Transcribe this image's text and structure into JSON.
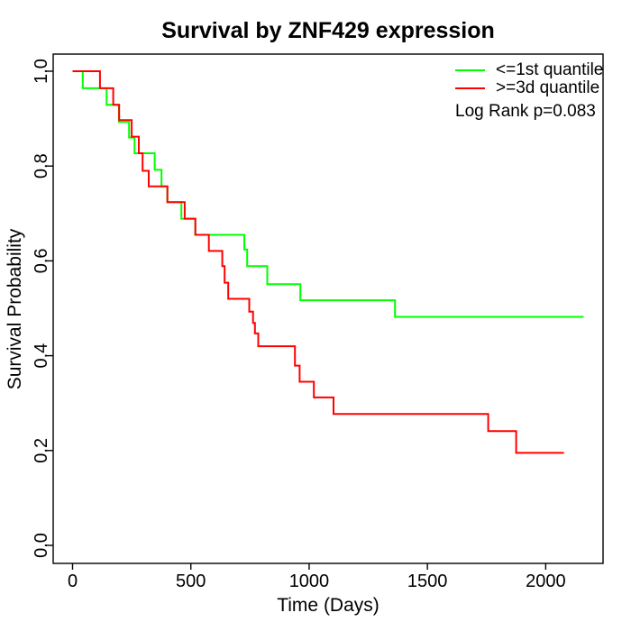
{
  "title": "Survival by ZNF429 expression",
  "axes": {
    "x": {
      "label": "Time (Days)",
      "ticks": [
        0,
        500,
        1000,
        1500,
        2000
      ]
    },
    "y": {
      "label": "Survival Probability",
      "ticks": [
        "0.0",
        "0.2",
        "0.4",
        "0.6",
        "0.8",
        "1.0"
      ]
    }
  },
  "legend": {
    "items": [
      {
        "label": "<=1st quantile",
        "color": "#00ff00"
      },
      {
        "label": ">=3d quantile",
        "color": "#ff0000"
      }
    ],
    "note": "Log Rank p=0.083"
  },
  "chart_data": {
    "type": "line",
    "subtype": "kaplan-meier-step",
    "title": "Survival by ZNF429 expression",
    "xlabel": "Time (Days)",
    "ylabel": "Survival Probability",
    "xlim": [
      0,
      2200
    ],
    "ylim": [
      0,
      1
    ],
    "x_ticks": [
      0,
      500,
      1000,
      1500,
      2000
    ],
    "y_ticks": [
      0.0,
      0.2,
      0.4,
      0.6,
      0.8,
      1.0
    ],
    "grid": false,
    "legend_position": "top-right",
    "annotation": "Log Rank p=0.083",
    "series": [
      {
        "name": "<=1st quantile",
        "color": "#00ff00",
        "points": [
          [
            0,
            1.0
          ],
          [
            43,
            0.964
          ],
          [
            144,
            0.929
          ],
          [
            196,
            0.893
          ],
          [
            239,
            0.86
          ],
          [
            262,
            0.827
          ],
          [
            347,
            0.792
          ],
          [
            376,
            0.757
          ],
          [
            401,
            0.724
          ],
          [
            460,
            0.689
          ],
          [
            519,
            0.655
          ],
          [
            726,
            0.624
          ],
          [
            738,
            0.589
          ],
          [
            823,
            0.551
          ],
          [
            963,
            0.517
          ],
          [
            1363,
            0.482
          ],
          [
            2160,
            0.482
          ]
        ]
      },
      {
        "name": ">=3d quantile",
        "color": "#ff0000",
        "points": [
          [
            0,
            1.0
          ],
          [
            116,
            0.964
          ],
          [
            172,
            0.929
          ],
          [
            197,
            0.897
          ],
          [
            250,
            0.862
          ],
          [
            280,
            0.827
          ],
          [
            296,
            0.79
          ],
          [
            322,
            0.757
          ],
          [
            401,
            0.724
          ],
          [
            474,
            0.689
          ],
          [
            519,
            0.655
          ],
          [
            576,
            0.621
          ],
          [
            633,
            0.589
          ],
          [
            643,
            0.554
          ],
          [
            658,
            0.52
          ],
          [
            747,
            0.493
          ],
          [
            763,
            0.469
          ],
          [
            771,
            0.447
          ],
          [
            785,
            0.42
          ],
          [
            940,
            0.379
          ],
          [
            960,
            0.345
          ],
          [
            1020,
            0.312
          ],
          [
            1103,
            0.277
          ],
          [
            1757,
            0.241
          ],
          [
            1875,
            0.195
          ],
          [
            2077,
            0.195
          ]
        ]
      }
    ]
  }
}
